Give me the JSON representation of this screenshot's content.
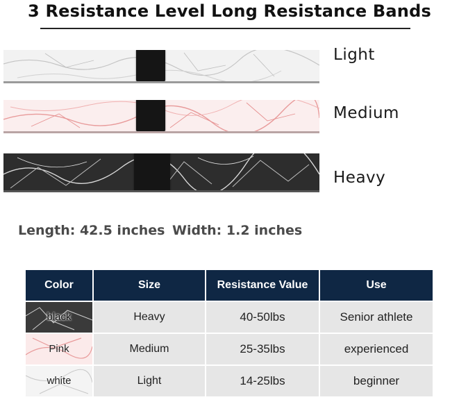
{
  "title": "3 Resistance Level Long Resistance Bands",
  "bands": [
    {
      "label": "Light",
      "color": "#f2f2f2",
      "vein_color": "#b8b8b8"
    },
    {
      "label": "Medium",
      "color": "#fbeeee",
      "vein_color": "#e58a8a"
    },
    {
      "label": "Heavy",
      "color": "#2d2d2d",
      "vein_color": "#cfcfcf"
    }
  ],
  "dimensions": {
    "length": "Length: 42.5 inches",
    "width": "Width: 1.2 inches"
  },
  "table": {
    "headers": [
      "Color",
      "Size",
      "Resistance Value",
      "Use"
    ],
    "rows": [
      {
        "color": "black",
        "size": "Heavy",
        "resistance": "40-50lbs",
        "use": "Senior athlete"
      },
      {
        "color": "Pink",
        "size": "Medium",
        "resistance": "25-35lbs",
        "use": "experienced"
      },
      {
        "color": "white",
        "size": "Light",
        "resistance": "14-25lbs",
        "use": "beginner"
      }
    ],
    "header_color": "#0f2744",
    "cell_color": "#e6e6e6"
  }
}
